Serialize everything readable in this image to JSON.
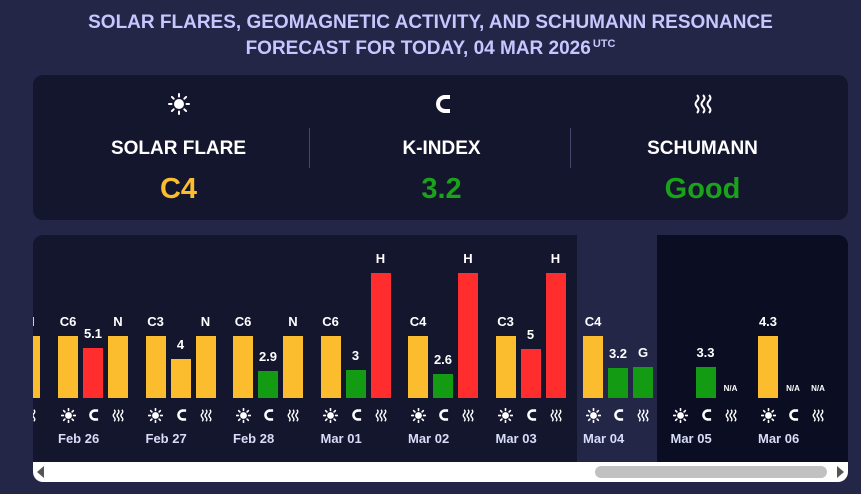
{
  "title": {
    "line1": "SOLAR FLARES, GEOMAGNETIC ACTIVITY, AND SCHUMANN RESONANCE",
    "line2": "FORECAST FOR TODAY, 04 MAR 2026",
    "tz": "UTC"
  },
  "summary": [
    {
      "icon": "sun-icon",
      "label": "SOLAR FLARE",
      "value": "C4",
      "color": "#fbbd2d"
    },
    {
      "icon": "magnet-icon",
      "label": "K-INDEX",
      "value": "3.2",
      "color": "#1aa31a"
    },
    {
      "icon": "waves-icon",
      "label": "SCHUMANN",
      "value": "Good",
      "color": "#1aa31a"
    }
  ],
  "colors": {
    "orange": "#fbbd2d",
    "green": "#139c13",
    "red": "#ff2d2d"
  },
  "days": [
    {
      "date": "Feb 26",
      "bars": [
        {
          "label": "C6",
          "type": "flare",
          "color": "orange"
        },
        {
          "label": "5.1",
          "type": "kindex",
          "color": "red"
        },
        {
          "label": "N",
          "type": "schumann",
          "color": "orange"
        }
      ]
    },
    {
      "date": "Feb 27",
      "bars": [
        {
          "label": "C3",
          "type": "flare",
          "color": "orange"
        },
        {
          "label": "4",
          "type": "kindex",
          "color": "orange"
        },
        {
          "label": "N",
          "type": "schumann",
          "color": "orange"
        }
      ]
    },
    {
      "date": "Feb 28",
      "bars": [
        {
          "label": "C6",
          "type": "flare",
          "color": "orange"
        },
        {
          "label": "2.9",
          "type": "kindex",
          "color": "green"
        },
        {
          "label": "N",
          "type": "schumann",
          "color": "orange"
        }
      ]
    },
    {
      "date": "Mar 01",
      "bars": [
        {
          "label": "C6",
          "type": "flare",
          "color": "orange"
        },
        {
          "label": "3",
          "type": "kindex",
          "color": "green"
        },
        {
          "label": "H",
          "type": "schumann",
          "color": "red"
        }
      ]
    },
    {
      "date": "Mar 02",
      "bars": [
        {
          "label": "C4",
          "type": "flare",
          "color": "orange"
        },
        {
          "label": "2.6",
          "type": "kindex",
          "color": "green"
        },
        {
          "label": "H",
          "type": "schumann",
          "color": "red"
        }
      ]
    },
    {
      "date": "Mar 03",
      "bars": [
        {
          "label": "C3",
          "type": "flare",
          "color": "orange"
        },
        {
          "label": "5",
          "type": "kindex",
          "color": "red"
        },
        {
          "label": "H",
          "type": "schumann",
          "color": "red"
        }
      ]
    },
    {
      "date": "Mar 04",
      "bars": [
        {
          "label": "C4",
          "type": "flare",
          "color": "orange"
        },
        {
          "label": "3.2",
          "type": "kindex",
          "color": "green"
        },
        {
          "label": "G",
          "type": "schumann",
          "color": "green"
        }
      ]
    },
    {
      "date": "Mar 05",
      "bars": [
        {
          "label": "",
          "type": "flare",
          "color": "none"
        },
        {
          "label": "3.3",
          "type": "kindex",
          "color": "green"
        },
        {
          "label": "N/A",
          "type": "schumann",
          "color": "none"
        }
      ]
    },
    {
      "date": "Mar 06",
      "bars": [
        {
          "label": "4.3",
          "type": "flare",
          "color": "orange"
        },
        {
          "label": "N/A",
          "type": "kindex",
          "color": "none"
        },
        {
          "label": "N/A",
          "type": "schumann",
          "color": "none"
        }
      ]
    }
  ],
  "partial_prev_day": {
    "label": "N",
    "color": "orange"
  }
}
